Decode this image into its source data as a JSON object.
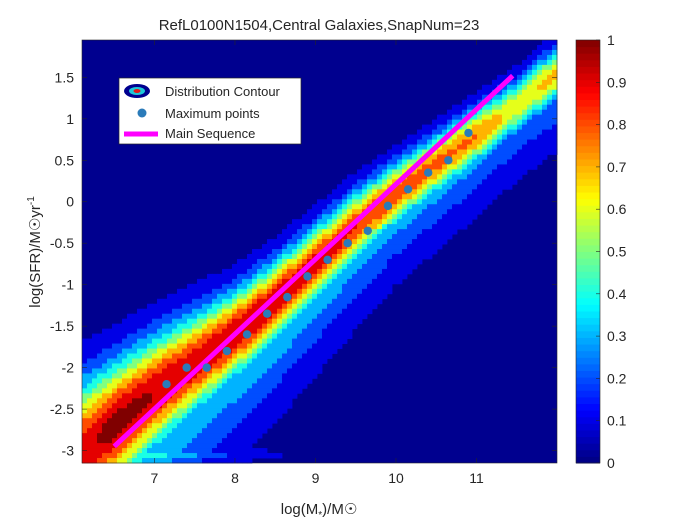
{
  "chart_data": {
    "type": "heatmap",
    "title": "RefL0100N1504,Central Galaxies,SnapNum=23",
    "xlabel_main": "log(M",
    "xlabel_sub": "*",
    "xlabel_unit": ")/M☉",
    "ylabel_main": "log(SFR)/M☉yr",
    "ylabel_sup": "-1",
    "xlim": [
      6.1,
      12.0
    ],
    "ylim": [
      -3.15,
      1.95
    ],
    "xticks": [
      7,
      8,
      9,
      10,
      11
    ],
    "xtick_labels": [
      "7",
      "8",
      "9",
      "10",
      "11"
    ],
    "yticks": [
      -3,
      -2.5,
      -2,
      -1.5,
      -1,
      -0.5,
      0,
      0.5,
      1,
      1.5
    ],
    "ytick_labels": [
      "-3",
      "-2.5",
      "-2",
      "-1.5",
      "-1",
      "-0.5",
      "0",
      "0.5",
      "1",
      "1.5"
    ],
    "colorbar": {
      "colormap": "jet",
      "range": [
        0,
        1
      ],
      "ticks": [
        0,
        0.1,
        0.2,
        0.3,
        0.4,
        0.5,
        0.6,
        0.7,
        0.8,
        0.9,
        1
      ],
      "tick_labels": [
        "0",
        "0.1",
        "0.2",
        "0.3",
        "0.4",
        "0.5",
        "0.6",
        "0.7",
        "0.8",
        "0.9",
        "1"
      ]
    },
    "legend": {
      "placement": "top-left",
      "entries": [
        "Distribution Contour",
        "Maximum points",
        "Main Sequence"
      ]
    },
    "series": [
      {
        "name": "Maximum points",
        "kind": "scatter",
        "color": "#2b7bb9",
        "x": [
          7.15,
          7.4,
          7.65,
          7.9,
          8.15,
          8.4,
          8.65,
          8.9,
          9.15,
          9.4,
          9.65,
          9.9,
          10.15,
          10.4,
          10.65,
          10.9
        ],
        "y": [
          -2.2,
          -2.0,
          -2.0,
          -1.8,
          -1.6,
          -1.35,
          -1.15,
          -0.9,
          -0.7,
          -0.5,
          -0.35,
          -0.05,
          0.15,
          0.35,
          0.5,
          0.83
        ]
      },
      {
        "name": "Main Sequence",
        "kind": "line",
        "color": "#ff00ff",
        "x": [
          6.5,
          11.45
        ],
        "y": [
          -2.95,
          1.52
        ]
      }
    ],
    "distribution": {
      "description_free": true,
      "ridge_x": [
        6.1,
        6.5,
        7.0,
        7.5,
        8.0,
        8.5,
        9.0,
        9.5,
        10.0,
        10.5,
        11.0,
        11.5,
        12.0
      ],
      "ridge_y": [
        -3.0,
        -2.7,
        -2.3,
        -1.95,
        -1.6,
        -1.2,
        -0.75,
        -0.3,
        0.1,
        0.45,
        0.8,
        1.15,
        1.55
      ],
      "ridge_width": [
        0.55,
        0.5,
        0.45,
        0.4,
        0.35,
        0.32,
        0.3,
        0.28,
        0.25,
        0.24,
        0.23,
        0.22,
        0.22
      ],
      "ridge_peak": [
        0.9,
        1.0,
        0.95,
        0.92,
        0.95,
        0.95,
        0.9,
        0.85,
        0.82,
        0.78,
        0.75,
        0.6,
        0.7
      ],
      "floor_y": -3.05,
      "floor_peak": 0.55
    }
  }
}
